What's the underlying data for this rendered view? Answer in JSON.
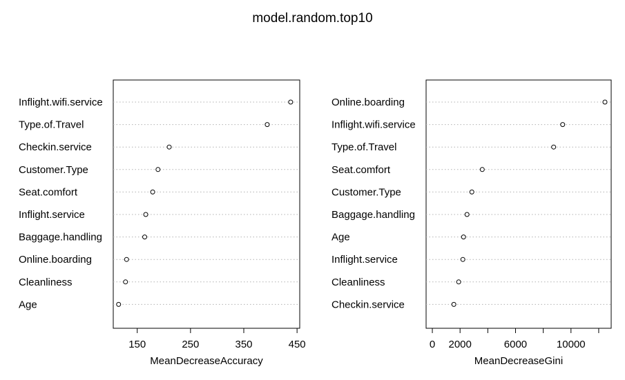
{
  "title": "model.random.top10",
  "chart_data": [
    {
      "type": "dotchart",
      "xlabel": "MeanDecreaseAccuracy",
      "ticks": [
        150,
        250,
        350,
        450
      ],
      "xlim": [
        105,
        455
      ],
      "grid": "dotted horizontal",
      "items": [
        {
          "label": "Inflight.wifi.service",
          "value": 438
        },
        {
          "label": "Type.of.Travel",
          "value": 394
        },
        {
          "label": "Checkin.service",
          "value": 210
        },
        {
          "label": "Customer.Type",
          "value": 189
        },
        {
          "label": "Seat.comfort",
          "value": 179
        },
        {
          "label": "Inflight.service",
          "value": 166
        },
        {
          "label": "Baggage.handling",
          "value": 164
        },
        {
          "label": "Online.boarding",
          "value": 130
        },
        {
          "label": "Cleanliness",
          "value": 128
        },
        {
          "label": "Age",
          "value": 115
        }
      ]
    },
    {
      "type": "dotchart",
      "xlabel": "MeanDecreaseGini",
      "ticks": [
        0,
        2000,
        6000,
        10000
      ],
      "minor_ticks": [
        4000,
        8000,
        12000
      ],
      "xlim": [
        -450,
        12900
      ],
      "grid": "dotted horizontal",
      "items": [
        {
          "label": "Online.boarding",
          "value": 12450
        },
        {
          "label": "Inflight.wifi.service",
          "value": 9400
        },
        {
          "label": "Type.of.Travel",
          "value": 8750
        },
        {
          "label": "Seat.comfort",
          "value": 3600
        },
        {
          "label": "Customer.Type",
          "value": 2850
        },
        {
          "label": "Baggage.handling",
          "value": 2500
        },
        {
          "label": "Age",
          "value": 2250
        },
        {
          "label": "Inflight.service",
          "value": 2200
        },
        {
          "label": "Cleanliness",
          "value": 1900
        },
        {
          "label": "Checkin.service",
          "value": 1550
        }
      ]
    }
  ]
}
